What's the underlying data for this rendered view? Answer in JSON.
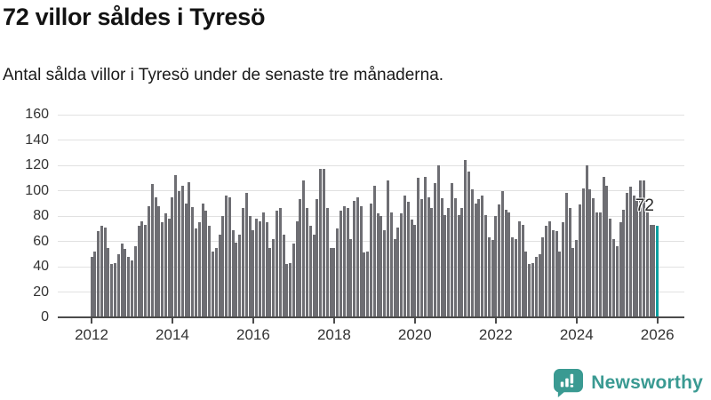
{
  "title": "72 villor såldes i Tyresö",
  "subtitle": "Antal sålda villor i Tyresö under de senaste tre månaderna.",
  "annotation": {
    "value_label": "72"
  },
  "logo": {
    "text": "Newsworthy",
    "color": "#3a9a92"
  },
  "colors": {
    "bar": "#6e6e73",
    "highlight": "#0aa0a0",
    "grid": "#e1e1e1",
    "axis": "#4b4b4b",
    "tick_text": "#333333",
    "title_text": "#131313"
  },
  "chart_data": {
    "type": "bar",
    "title": "72 villor såldes i Tyresö",
    "subtitle": "Antal sålda villor i Tyresö under de senaste tre månaderna.",
    "frequency": "monthly",
    "x_start": "2012-01",
    "x_end": "2026-01",
    "ylim": [
      0,
      160
    ],
    "y_ticks": [
      0,
      20,
      40,
      60,
      80,
      100,
      120,
      140,
      160
    ],
    "x_ticks": [
      {
        "label": "2012",
        "month_index": 0
      },
      {
        "label": "2014",
        "month_index": 24
      },
      {
        "label": "2016",
        "month_index": 48
      },
      {
        "label": "2018",
        "month_index": 72
      },
      {
        "label": "2020",
        "month_index": 96
      },
      {
        "label": "2022",
        "month_index": 120
      },
      {
        "label": "2024",
        "month_index": 144
      },
      {
        "label": "2026",
        "month_index": 168
      }
    ],
    "grid": true,
    "legend": false,
    "highlight_last": true,
    "highlight_value": 72,
    "values": [
      48,
      52,
      68,
      72,
      71,
      55,
      42,
      43,
      50,
      58,
      54,
      48,
      45,
      56,
      72,
      76,
      73,
      88,
      105,
      95,
      88,
      75,
      82,
      78,
      95,
      112,
      100,
      104,
      90,
      107,
      87,
      70,
      75,
      90,
      84,
      72,
      52,
      55,
      65,
      80,
      96,
      95,
      69,
      59,
      65,
      86,
      98,
      80,
      69,
      78,
      76,
      83,
      75,
      55,
      62,
      84,
      86,
      65,
      42,
      43,
      58,
      76,
      93,
      108,
      86,
      72,
      65,
      93,
      117,
      117,
      86,
      55,
      55,
      70,
      84,
      88,
      86,
      62,
      92,
      95,
      88,
      51,
      52,
      90,
      104,
      82,
      80,
      69,
      108,
      83,
      62,
      71,
      82,
      96,
      91,
      77,
      73,
      110,
      93,
      111,
      95,
      86,
      106,
      120,
      94,
      81,
      86,
      106,
      94,
      81,
      86,
      124,
      115,
      101,
      90,
      93,
      96,
      81,
      63,
      61,
      80,
      89,
      100,
      85,
      83,
      63,
      62,
      76,
      73,
      52,
      42,
      43,
      48,
      50,
      63,
      72,
      76,
      69,
      68,
      52,
      75,
      98,
      86,
      55,
      61,
      89,
      102,
      120,
      101,
      94,
      83,
      83,
      111,
      104,
      78,
      62,
      56,
      75,
      85,
      98,
      103,
      96,
      92,
      108,
      108,
      83,
      73,
      73,
      72
    ]
  }
}
